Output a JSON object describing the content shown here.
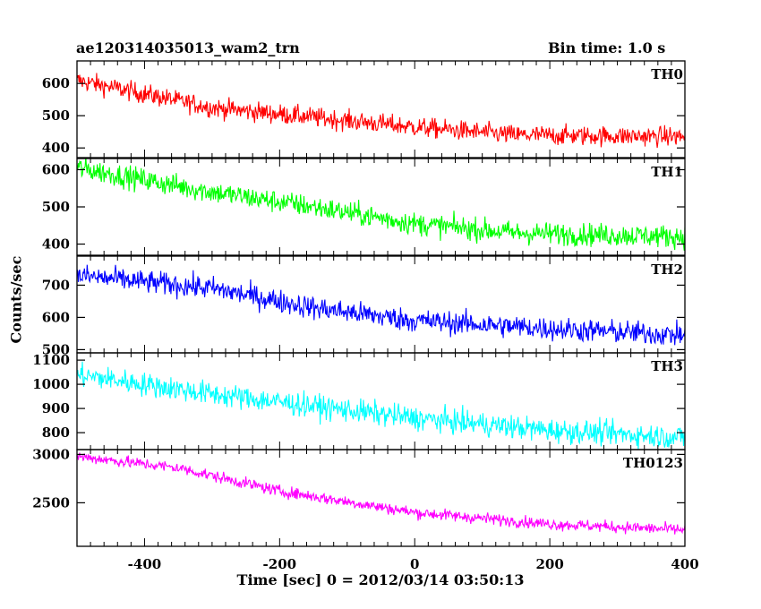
{
  "header": {
    "title": "ae120314035013_wam2_trn",
    "bin_time": "Bin time: 1.0 s"
  },
  "axes": {
    "ylabel": "Counts/sec",
    "xlabel": "Time [sec] 0 = 2012/03/14 03:50:13"
  },
  "chart_data": {
    "type": "line",
    "title": "ae120314035013_wam2_trn",
    "xlabel": "Time [sec] 0 = 2012/03/14 03:50:13",
    "ylabel": "Counts/sec",
    "xlim": [
      -500,
      400
    ],
    "xticks": [
      -400,
      -200,
      0,
      200,
      400
    ],
    "x_start": -500,
    "x_end": 400,
    "x_step": 1,
    "panels": [
      {
        "name": "TH0",
        "color": "#ff0000",
        "ylim": [
          370,
          670
        ],
        "yticks": [
          400,
          500,
          600
        ],
        "trend": [
          [
            -500,
            610
          ],
          [
            -300,
            525
          ],
          [
            -150,
            495
          ],
          [
            0,
            465
          ],
          [
            150,
            440
          ],
          [
            400,
            435
          ]
        ],
        "noise": 28
      },
      {
        "name": "TH1",
        "color": "#00ff00",
        "ylim": [
          370,
          630
        ],
        "yticks": [
          400,
          500,
          600
        ],
        "trend": [
          [
            -500,
            605
          ],
          [
            -300,
            540
          ],
          [
            -150,
            500
          ],
          [
            0,
            455
          ],
          [
            150,
            430
          ],
          [
            400,
            420
          ]
        ],
        "noise": 28
      },
      {
        "name": "TH2",
        "color": "#0000ff",
        "ylim": [
          490,
          790
        ],
        "yticks": [
          500,
          600,
          700
        ],
        "trend": [
          [
            -500,
            730
          ],
          [
            -300,
            690
          ],
          [
            -150,
            630
          ],
          [
            0,
            590
          ],
          [
            200,
            565
          ],
          [
            400,
            545
          ]
        ],
        "noise": 33
      },
      {
        "name": "TH3",
        "color": "#00ffff",
        "ylim": [
          730,
          1130
        ],
        "yticks": [
          800,
          900,
          1000,
          1100
        ],
        "trend": [
          [
            -500,
            1040
          ],
          [
            -300,
            960
          ],
          [
            -150,
            910
          ],
          [
            0,
            860
          ],
          [
            200,
            810
          ],
          [
            400,
            780
          ]
        ],
        "noise": 45
      },
      {
        "name": "TH0123",
        "color": "#ff00ff",
        "ylim": [
          2050,
          3050
        ],
        "yticks": [
          2500,
          3000
        ],
        "trend": [
          [
            -500,
            2980
          ],
          [
            -350,
            2860
          ],
          [
            -200,
            2620
          ],
          [
            0,
            2400
          ],
          [
            200,
            2280
          ],
          [
            400,
            2220
          ]
        ],
        "noise": 55
      }
    ]
  }
}
